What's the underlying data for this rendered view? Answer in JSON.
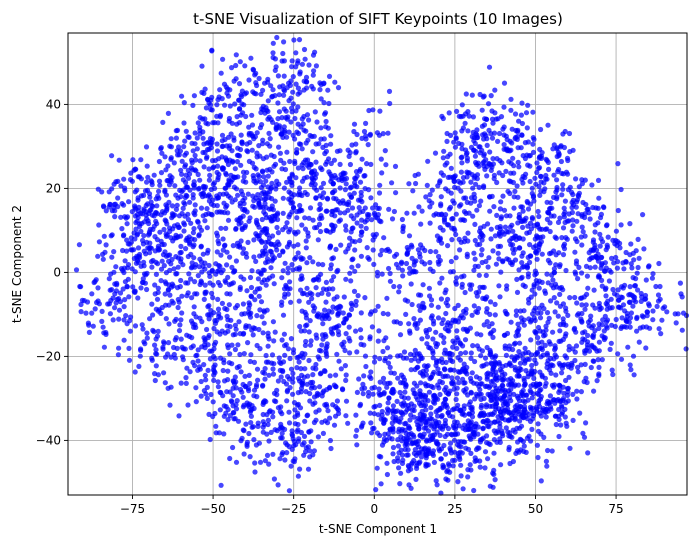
{
  "chart_data": {
    "type": "scatter",
    "title": "t-SNE Visualization of SIFT Keypoints (10 Images)",
    "xlabel": "t-SNE Component 1",
    "ylabel": "t-SNE Component 2",
    "xlim": [
      -95,
      97
    ],
    "ylim": [
      -53,
      57
    ],
    "xticks": [
      -75,
      -50,
      -25,
      0,
      25,
      50,
      75
    ],
    "yticks": [
      -40,
      -20,
      0,
      20,
      40
    ],
    "xtick_labels": [
      "−75",
      "−50",
      "−25",
      "0",
      "25",
      "50",
      "75"
    ],
    "ytick_labels": [
      "−40",
      "−20",
      "0",
      "20",
      "40"
    ],
    "grid": true,
    "point_color": "#0000ff",
    "series": [
      {
        "x": [
          -84,
          -82,
          -80,
          -78,
          -77,
          -75,
          -73,
          -72,
          -70,
          -68,
          -66,
          -64,
          -62,
          -60,
          -58,
          -56,
          -55,
          -53,
          -51,
          -50,
          -48,
          -46,
          -44,
          -42,
          -40,
          -38,
          -36,
          -35,
          -33,
          -31,
          -30,
          -28,
          -26,
          -25,
          -23,
          -21,
          -20,
          -18,
          -16,
          -15,
          -13,
          -11,
          -10,
          -8,
          -6,
          -5,
          -3,
          -1,
          -80,
          -76,
          -72,
          -68,
          -64,
          -60,
          -56,
          -52,
          -48,
          -44,
          -40,
          -36,
          -32,
          -28,
          -24,
          -20,
          -16,
          -12,
          -8,
          -4,
          -74,
          -70,
          -66,
          -62,
          -58,
          -54,
          -50,
          -46,
          -42,
          -38,
          -34,
          -30,
          -26,
          -22,
          -18,
          -14,
          -10,
          -6,
          -2,
          -68,
          -64,
          -60,
          -56,
          -52,
          -48,
          -44,
          -40,
          -36,
          -32,
          -28,
          -24,
          -20,
          -16,
          -12,
          -8,
          -60,
          -56,
          -52,
          -48,
          -44,
          -40,
          -36,
          -32,
          -28,
          -24,
          -20,
          -16,
          -50,
          -46,
          -42,
          -38,
          -34,
          -30,
          -26,
          -22,
          -18,
          -40,
          -36,
          -32,
          -28,
          -24,
          -20,
          4,
          8,
          12,
          16,
          20,
          24,
          28,
          32,
          36,
          40,
          44,
          48,
          52,
          56,
          60,
          64,
          68,
          72,
          76,
          80,
          84,
          88,
          10,
          14,
          18,
          22,
          26,
          30,
          34,
          38,
          42,
          46,
          50,
          54,
          58,
          62,
          66,
          70,
          74,
          78,
          82,
          8,
          12,
          16,
          20,
          24,
          28,
          32,
          36,
          40,
          44,
          48,
          52,
          56,
          60,
          64,
          68,
          72,
          76,
          12,
          16,
          20,
          24,
          28,
          32,
          36,
          40,
          44,
          48,
          52,
          56,
          60,
          64,
          68,
          20,
          24,
          28,
          32,
          36,
          40,
          44,
          48,
          52,
          56,
          60,
          30,
          34,
          38,
          42,
          46,
          50,
          2,
          6,
          10,
          14,
          18,
          22,
          26,
          30,
          34,
          38,
          42,
          46,
          50,
          54,
          58,
          4,
          8,
          12,
          16,
          20,
          24,
          28,
          32,
          36,
          40,
          44,
          48,
          52,
          56,
          6,
          10,
          14,
          18,
          22,
          26,
          30,
          34,
          38,
          42,
          46,
          50
        ],
        "y": [
          -8,
          -6,
          -9,
          12,
          -14,
          18,
          15,
          10,
          20,
          -18,
          8,
          5,
          26,
          -22,
          3,
          30,
          -3,
          -26,
          22,
          0,
          38,
          18,
          -30,
          12,
          40,
          -34,
          28,
          -8,
          44,
          6,
          -22,
          36,
          48,
          14,
          -40,
          25,
          2,
          44,
          -12,
          30,
          -4,
          18,
          -18,
          22,
          10,
          -30,
          34,
          16,
          0,
          14,
          4,
          22,
          -10,
          28,
          -20,
          34,
          -28,
          42,
          -38,
          26,
          -24,
          46,
          -36,
          20,
          -8,
          24,
          -14,
          12,
          -2,
          6,
          16,
          -6,
          10,
          20,
          -14,
          24,
          6,
          32,
          14,
          -18,
          38,
          -6,
          8,
          -28,
          26,
          4,
          -34,
          12,
          -16,
          18,
          2,
          8,
          -20,
          16,
          -10,
          18,
          2,
          -30,
          12,
          -22,
          22,
          -16,
          16,
          -4,
          14,
          24,
          -12,
          30,
          2,
          20,
          -42,
          10,
          -26,
          14,
          -6,
          36,
          -24,
          44,
          -34,
          22,
          -40,
          42,
          -32,
          -28,
          -12,
          8,
          -2,
          30,
          -44,
          34,
          2,
          4,
          6,
          -4,
          -10,
          14,
          -20,
          24,
          -26,
          32,
          -30,
          22,
          -14,
          18,
          -20,
          12,
          6,
          -2,
          -8,
          -4,
          -12,
          -10,
          -30,
          -24,
          16,
          -36,
          -4,
          26,
          -40,
          34,
          -34,
          6,
          -16,
          28,
          -28,
          8,
          -8,
          -14,
          4,
          -6,
          -12,
          -38,
          -44,
          -20,
          22,
          30,
          -32,
          20,
          36,
          -22,
          10,
          2,
          30,
          -26,
          -2,
          -18,
          4,
          -10,
          8,
          -42,
          -46,
          -10,
          8,
          -26,
          -38,
          26,
          12,
          -36,
          18,
          -10,
          24,
          -34,
          20,
          -18,
          -22,
          14,
          -42,
          36,
          -6,
          -28,
          4,
          -20,
          26,
          -4,
          14,
          -8,
          28,
          -34,
          -24,
          8,
          16,
          -30,
          -36,
          -40,
          -42,
          -28,
          -30,
          -18,
          -36,
          -8,
          2,
          -24,
          -38,
          -12,
          -30,
          -24,
          -20,
          -32,
          -42,
          -28,
          -46,
          -34,
          -38,
          10,
          -26,
          30,
          -40,
          -30,
          2,
          -32,
          -26,
          -14,
          -34,
          -38,
          -24,
          -40,
          -44,
          -32,
          -36,
          -28,
          -22,
          -30
        ]
      }
    ]
  }
}
